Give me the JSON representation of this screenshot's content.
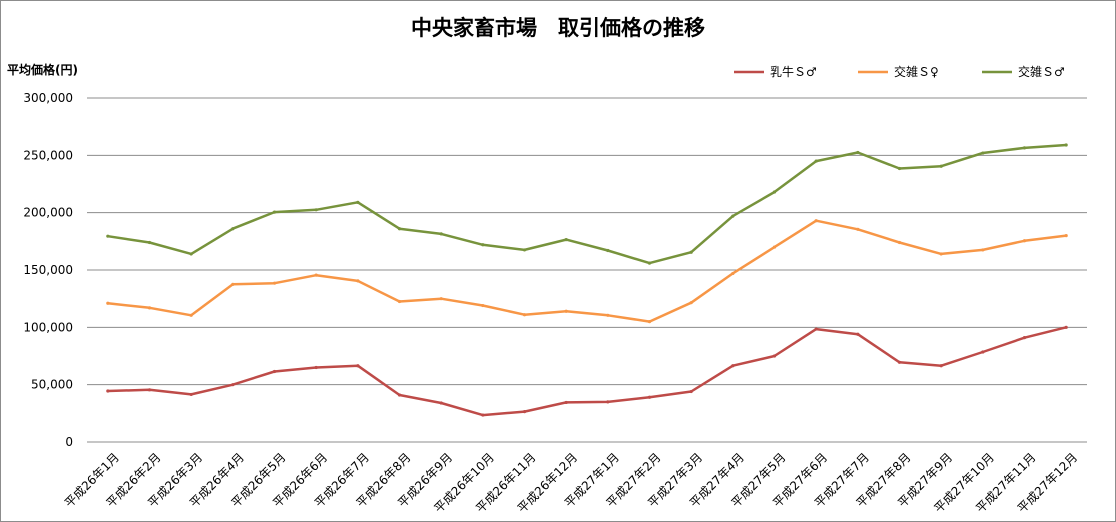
{
  "chart_data": {
    "type": "line",
    "title": "中央家畜市場　取引価格の推移",
    "ylabel": "平均価格(円)",
    "xlabel": "",
    "ylim": [
      0,
      300000
    ],
    "yticks": [
      0,
      50000,
      100000,
      150000,
      200000,
      250000,
      300000
    ],
    "ytick_labels": [
      "0",
      "50,000",
      "100,000",
      "150,000",
      "200,000",
      "250,000",
      "300,000"
    ],
    "grid": true,
    "legend_position": "top-right",
    "categories": [
      "平成26年1月",
      "平成26年2月",
      "平成26年3月",
      "平成26年4月",
      "平成26年5月",
      "平成26年6月",
      "平成26年7月",
      "平成26年8月",
      "平成26年9月",
      "平成26年10月",
      "平成26年11月",
      "平成26年12月",
      "平成27年1月",
      "平成27年2月",
      "平成27年3月",
      "平成27年4月",
      "平成27年5月",
      "平成27年6月",
      "平成27年7月",
      "平成27年8月",
      "平成27年9月",
      "平成27年10月",
      "平成27年11月",
      "平成27年12月"
    ],
    "series": [
      {
        "name": "乳牛Ｓ♂",
        "color": "#be4b48",
        "values": [
          44500,
          45500,
          41500,
          50000,
          61500,
          65000,
          66500,
          41000,
          34000,
          23500,
          26500,
          34500,
          35000,
          39000,
          44000,
          66500,
          75000,
          98500,
          94000,
          69500,
          66500,
          78500,
          91000,
          100000
        ]
      },
      {
        "name": "交雑Ｓ♀",
        "color": "#f79646",
        "values": [
          121000,
          117000,
          110500,
          137500,
          138500,
          145500,
          140500,
          122500,
          125000,
          119000,
          111000,
          114000,
          110500,
          105000,
          121500,
          147000,
          170000,
          193000,
          185500,
          174000,
          164000,
          167500,
          175500,
          180000
        ]
      },
      {
        "name": "交雑Ｓ♂",
        "color": "#77933c",
        "values": [
          179500,
          174000,
          164000,
          186000,
          200500,
          202500,
          209000,
          186000,
          181500,
          172000,
          167500,
          176500,
          167000,
          156000,
          165500,
          197000,
          218000,
          245000,
          252500,
          238500,
          240500,
          252000,
          256500,
          259000
        ]
      }
    ]
  }
}
